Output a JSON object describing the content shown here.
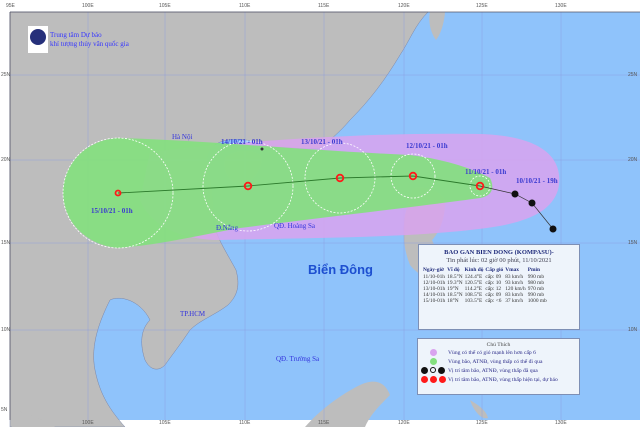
{
  "header": {
    "agency_line1": "Trung tâm Dự báo",
    "agency_line2": "khí tượng thủy văn quốc gia"
  },
  "axes": {
    "top_lon": [
      "95E",
      "100E",
      "105E",
      "110E",
      "115E",
      "120E",
      "125E",
      "130E"
    ],
    "bottom_lon": [
      "100E",
      "105E",
      "110E",
      "115E",
      "120E",
      "125E",
      "130E"
    ],
    "left_lat": [
      "25N",
      "20N",
      "15N",
      "10N",
      "5N"
    ],
    "right_lat": [
      "25N",
      "20N",
      "15N",
      "10N"
    ]
  },
  "places": {
    "hanoi": "Hà Nội",
    "danang": "Đ.Nẵng",
    "hoangsa": "QĐ. Hoàng Sa",
    "hcm": "TP.HCM",
    "truongsa": "QĐ. Trường Sa",
    "sea": "Biển Đông"
  },
  "track_labels": {
    "p15": "15/10/21 - 01h",
    "p14": "14/10/21 - 01h",
    "p13": "13/10/21 - 01h",
    "p12": "12/10/21 - 01h",
    "p11": "11/10/21 - 01h",
    "p10": "10/10/21 - 19h"
  },
  "info": {
    "title": "BAO GAN BIEN DONG (KOMPASU)-",
    "issued": "Tin phát lúc: 02 giờ 00 phút, 11/10/2021",
    "columns": [
      "Ngày-giờ",
      "Vĩ độ",
      "Kinh độ",
      "Cấp gió",
      "Vmax",
      "Pmin"
    ],
    "rows": [
      [
        "11/10-01h",
        "18.5°N",
        "124.4°E",
        "cấp: 09",
        "83 km/h",
        "990 mb"
      ],
      [
        "12/10-01h",
        "19.3°N",
        "120.5°E",
        "cấp: 10",
        "93 km/h",
        "980 mb"
      ],
      [
        "13/10-01h",
        "19°N",
        "114.2°E",
        "cấp: 12",
        "120 km/h",
        "970 mb"
      ],
      [
        "14/10-01h",
        "18.5°N",
        "108.5°E",
        "cấp: 09",
        "83 km/h",
        "990 mb"
      ],
      [
        "15/10-01h",
        "18°N",
        "103.5°E",
        "cấp: <6",
        "37 km/h",
        "1000 mb"
      ]
    ]
  },
  "legend": {
    "title": "Chú Thích",
    "items": [
      "Vùng có thể có gió mạnh lên hơn cấp 6",
      "Vùng bão, ATNĐ, vùng thấp có thể đi qua",
      "Vị trí tâm bão, ATNĐ, vùng thấp đã qua",
      "Vị trí tâm bão, ATNĐ, vùng thấp hiện tại, dự báo"
    ]
  },
  "colors": {
    "sea": "#8fc3fb",
    "land": "#bdbdbd",
    "wind_zone": "#d9a3ef",
    "storm_zone": "#84e07f",
    "forecast_symbol": "#ff1a1a",
    "past_symbol": "#111111"
  }
}
